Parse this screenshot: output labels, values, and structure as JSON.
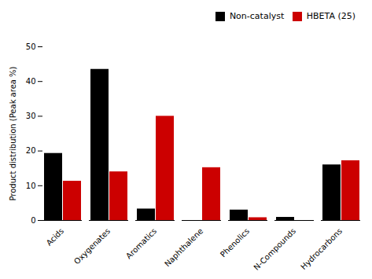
{
  "chart_data": {
    "type": "bar",
    "categories": [
      "Acids",
      "Oxygenates",
      "Aromatics",
      "Naphthalene",
      "Phenolics",
      "N-Compounds",
      "Hydrocarbons"
    ],
    "series": [
      {
        "name": "Non-catalyst",
        "color": "#000000",
        "values": [
          19.3,
          43.5,
          3.3,
          0.0,
          3.0,
          0.9,
          16.0
        ]
      },
      {
        "name": "HBETA (25)",
        "color": "#cc0000",
        "values": [
          11.3,
          14.0,
          30.0,
          15.2,
          0.8,
          0.0,
          17.2
        ]
      }
    ],
    "ylabel": "Product distribution (Peak area %)",
    "ylim": [
      0,
      50
    ],
    "yticks": [
      0,
      10,
      20,
      30,
      40,
      50
    ],
    "legend": "upper right"
  }
}
